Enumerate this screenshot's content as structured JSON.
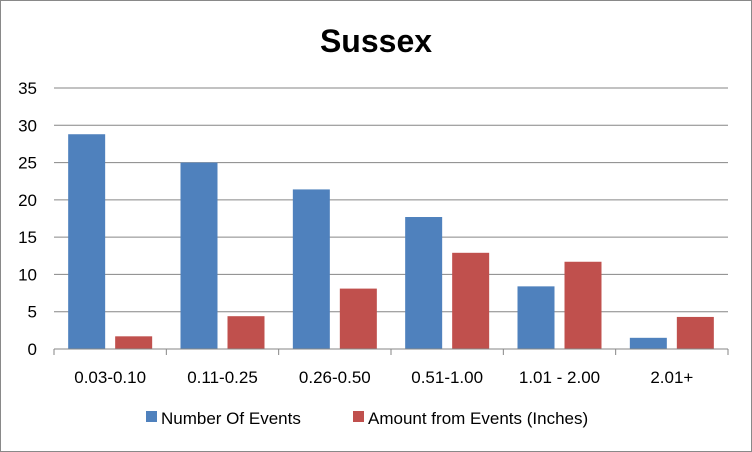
{
  "chart_data": {
    "type": "bar",
    "title": "Sussex",
    "xlabel": "",
    "ylabel": "",
    "categories": [
      "0.03-0.10",
      "0.11-0.25",
      "0.26-0.50",
      "0.51-1.00",
      "1.01 - 2.00",
      "2.01+"
    ],
    "series": [
      {
        "name": "Number Of Events",
        "color": "#4F81BD",
        "values": [
          28.8,
          25.0,
          21.4,
          17.7,
          8.4,
          1.5
        ]
      },
      {
        "name": "Amount from Events (Inches)",
        "color": "#C0504D",
        "values": [
          1.7,
          4.4,
          8.1,
          12.9,
          11.7,
          4.3
        ]
      }
    ],
    "ylim": [
      0,
      35
    ],
    "yticks": [
      0,
      5,
      10,
      15,
      20,
      25,
      30,
      35
    ],
    "grid": true,
    "legend_position": "bottom"
  }
}
